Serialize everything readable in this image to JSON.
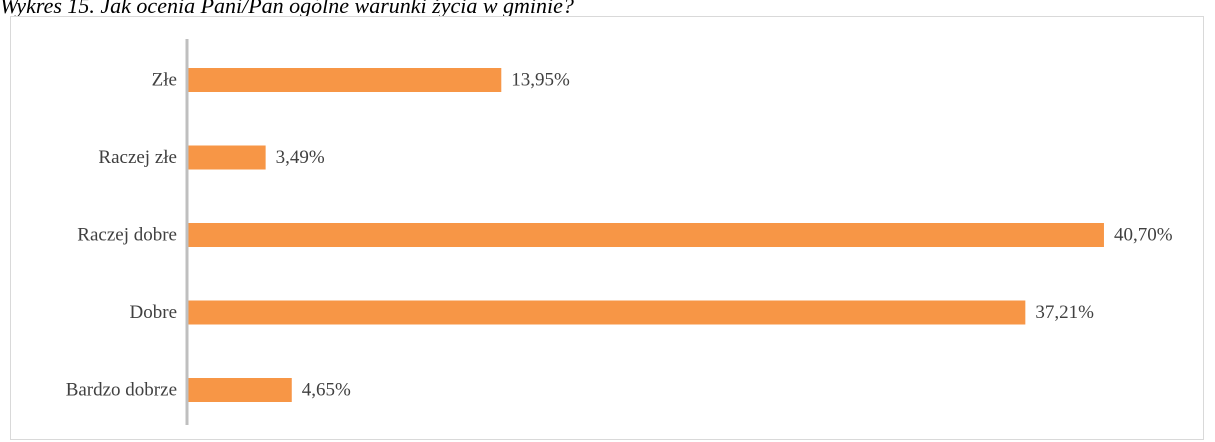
{
  "caption": "Wykres 15. Jak ocenia Pani/Pan ogólne warunki życia w gminie?",
  "chart_data": {
    "type": "bar",
    "orientation": "horizontal",
    "title": "",
    "xlabel": "",
    "ylabel": "",
    "categories": [
      "Złe",
      "Raczej złe",
      "Raczej dobre",
      "Dobre",
      "Bardzo dobrze"
    ],
    "values": [
      13.95,
      3.49,
      40.7,
      37.21,
      4.65
    ],
    "value_labels": [
      "13,95%",
      "3,49%",
      "40,70%",
      "37,21%",
      "4,65%"
    ],
    "xlim": [
      0,
      41.9
    ],
    "grid": false,
    "legend": "none",
    "bar_color": "#F79646",
    "axis_color": "#BFBFBF",
    "label_color": "#404040"
  }
}
